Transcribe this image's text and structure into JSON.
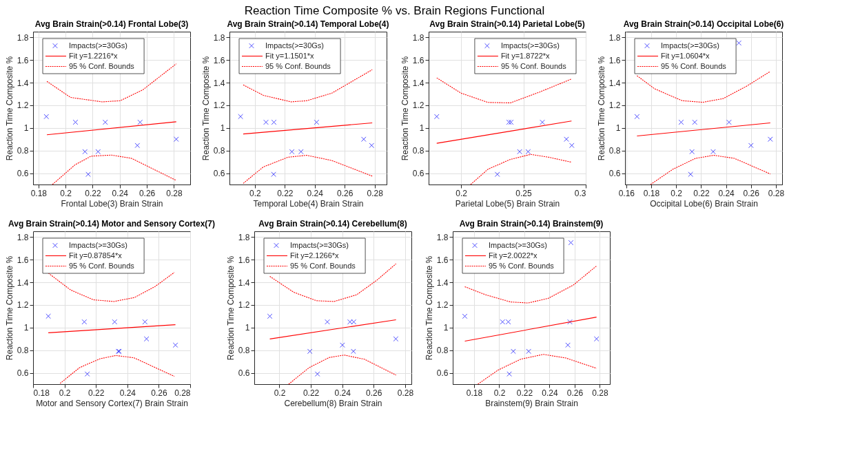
{
  "chart_data": [
    {
      "type": "other",
      "title": "Reaction Time Composite % vs. Brain Regions Functional"
    },
    {
      "type": "scatter",
      "title": "Avg Brain Strain(>0.14) Frontal Lobe(3)",
      "xlabel": "Frontal Lobe(3) Brain Strain",
      "ylabel": "Reaction Time Composite %",
      "xlim": [
        0.176,
        0.292
      ],
      "xticks": [
        0.18,
        0.2,
        0.22,
        0.24,
        0.26,
        0.28
      ],
      "ylim": [
        0.5,
        1.85
      ],
      "yticks": [
        0.6,
        0.8,
        1,
        1.2,
        1.4,
        1.6,
        1.8
      ],
      "grid": true,
      "legend": "top left",
      "series": [
        {
          "name": "Impacts(>=30Gs)",
          "type": "scatter",
          "marker": "cross",
          "color": "#0000ff",
          "x": [
            0.1858,
            0.2073,
            0.2293,
            0.255,
            0.2143,
            0.224,
            0.2167,
            0.253,
            0.2817
          ],
          "values": [
            1.1,
            1.05,
            1.05,
            1.05,
            0.79,
            0.79,
            0.59,
            0.845,
            0.9
          ]
        },
        {
          "name": "Fit y=1.2216*x",
          "type": "line",
          "line_style": "solid",
          "color": "#ff0000",
          "x": [
            0.1862,
            0.2817
          ],
          "values": [
            0.939,
            1.054
          ]
        },
        {
          "name": "95 % Conf. Bounds",
          "type": "line",
          "line_style": "dotted",
          "color": "#ff0000",
          "x": [
            0.1862,
            0.2037,
            0.227,
            0.2403,
            0.257,
            0.2817
          ],
          "values": [
            1.411,
            1.269,
            1.23,
            1.24,
            1.336,
            1.566
          ]
        },
        {
          "type": "line",
          "line_style": "dotted",
          "color": "#ff0000",
          "x": [
            0.1903,
            0.207,
            0.2187,
            0.2337,
            0.2487,
            0.2817
          ],
          "values": [
            0.5,
            0.674,
            0.75,
            0.76,
            0.731,
            0.536
          ]
        }
      ]
    },
    {
      "type": "scatter",
      "title": "Avg Brain Strain(>0.14) Temporal Lobe(4)",
      "xlabel": "Temporal Lobe(4) Brain Strain",
      "ylabel": "Reaction Time Composite %",
      "xlim": [
        0.183,
        0.288
      ],
      "xticks": [
        0.2,
        0.22,
        0.24,
        0.26,
        0.28
      ],
      "ylim": [
        0.5,
        1.85
      ],
      "yticks": [
        0.6,
        0.8,
        1,
        1.2,
        1.4,
        1.6,
        1.8
      ],
      "grid": true,
      "legend": "top left",
      "series": [
        {
          "name": "Impacts(>=30Gs)",
          "type": "scatter",
          "marker": "cross",
          "color": "#0000ff",
          "x": [
            0.1904,
            0.2074,
            0.2127,
            0.2412,
            0.2247,
            0.2308,
            0.2125,
            0.2727,
            0.278
          ],
          "values": [
            1.1,
            1.05,
            1.05,
            1.05,
            0.79,
            0.79,
            0.59,
            0.9,
            0.845
          ]
        },
        {
          "name": "Fit y=1.1501*x",
          "type": "line",
          "line_style": "solid",
          "color": "#ff0000",
          "x": [
            0.1922,
            0.2784
          ],
          "values": [
            0.946,
            1.044
          ]
        },
        {
          "name": "95 % Conf. Bounds",
          "type": "line",
          "line_style": "dotted",
          "color": "#ff0000",
          "x": [
            0.1922,
            0.2056,
            0.2241,
            0.2346,
            0.2514,
            0.2784
          ],
          "values": [
            1.38,
            1.288,
            1.23,
            1.24,
            1.307,
            1.514
          ]
        },
        {
          "type": "line",
          "line_style": "dotted",
          "color": "#ff0000",
          "x": [
            0.1922,
            0.2056,
            0.2221,
            0.2346,
            0.2514,
            0.2784
          ],
          "values": [
            0.51,
            0.655,
            0.741,
            0.758,
            0.712,
            0.574
          ]
        }
      ]
    },
    {
      "type": "scatter",
      "title": "Avg Brain Strain(>0.14) Parietal Lobe(5)",
      "xlabel": "Parietal Lobe(5) Brain Strain",
      "ylabel": "Reaction Time Composite %",
      "xlim": [
        0.174,
        0.3
      ],
      "xticks": [
        0.2,
        0.25,
        0.3
      ],
      "ylim": [
        0.5,
        1.85
      ],
      "yticks": [
        0.6,
        0.8,
        1,
        1.2,
        1.4,
        1.6,
        1.8
      ],
      "grid": true,
      "legend": "top right",
      "series": [
        {
          "name": "Impacts(>=30Gs)",
          "type": "scatter",
          "marker": "cross",
          "color": "#0000ff",
          "x": [
            0.1805,
            0.2384,
            0.2401,
            0.2652,
            0.2291,
            0.247,
            0.2538,
            0.2845,
            0.2888
          ],
          "values": [
            1.1,
            1.05,
            1.05,
            1.05,
            0.59,
            0.79,
            0.79,
            0.9,
            0.845
          ]
        },
        {
          "name": "Fit y=1.8722*x",
          "type": "line",
          "line_style": "solid",
          "color": "#ff0000",
          "x": [
            0.1805,
            0.2886
          ],
          "values": [
            0.864,
            1.061
          ]
        },
        {
          "name": "95 % Conf. Bounds",
          "type": "line",
          "line_style": "dotted",
          "color": "#ff0000",
          "x": [
            0.1805,
            0.2,
            0.2216,
            0.2396,
            0.2631,
            0.2886
          ],
          "values": [
            1.442,
            1.307,
            1.225,
            1.221,
            1.317,
            1.432
          ]
        },
        {
          "type": "line",
          "line_style": "dotted",
          "color": "#ff0000",
          "x": [
            0.2077,
            0.2216,
            0.2396,
            0.2559,
            0.2703,
            0.2886
          ],
          "values": [
            0.5,
            0.635,
            0.722,
            0.766,
            0.741,
            0.697
          ]
        }
      ]
    },
    {
      "type": "scatter",
      "title": "Avg Brain Strain(>0.14) Occipital Lobe(6)",
      "xlabel": "Occipital Lobe(6) Brain Strain",
      "ylabel": "Reaction Time Composite %",
      "xlim": [
        0.159,
        0.285
      ],
      "xticks": [
        0.16,
        0.18,
        0.2,
        0.22,
        0.24,
        0.26,
        0.28
      ],
      "ylim": [
        0.5,
        1.85
      ],
      "yticks": [
        0.6,
        0.8,
        1,
        1.2,
        1.4,
        1.6,
        1.8
      ],
      "grid": true,
      "legend": "top left",
      "series": [
        {
          "name": "Impacts(>=30Gs)",
          "type": "scatter",
          "marker": "cross",
          "color": "#0000ff",
          "x": [
            0.1686,
            0.204,
            0.2149,
            0.2424,
            0.2503,
            0.2127,
            0.2297,
            0.2116,
            0.26,
            0.2755
          ],
          "values": [
            1.1,
            1.05,
            1.05,
            1.05,
            1.75,
            0.79,
            0.79,
            0.59,
            0.845,
            0.9
          ]
        },
        {
          "name": "Fit y=1.0604*x",
          "type": "line",
          "line_style": "solid",
          "color": "#ff0000",
          "x": [
            0.1686,
            0.2755
          ],
          "values": [
            0.929,
            1.044
          ]
        },
        {
          "name": "95 % Conf. Bounds",
          "type": "line",
          "line_style": "dotted",
          "color": "#ff0000",
          "x": [
            0.1686,
            0.1828,
            0.2049,
            0.2213,
            0.2377,
            0.256,
            0.2755
          ],
          "values": [
            1.461,
            1.345,
            1.24,
            1.226,
            1.259,
            1.365,
            1.499
          ]
        },
        {
          "type": "line",
          "line_style": "dotted",
          "color": "#ff0000",
          "x": [
            0.1795,
            0.1974,
            0.2156,
            0.2302,
            0.2467,
            0.2755
          ],
          "values": [
            0.5,
            0.635,
            0.731,
            0.758,
            0.731,
            0.593
          ]
        }
      ]
    },
    {
      "type": "scatter",
      "title": "Avg Brain Strain(>0.14) Motor and Sensory Cortex(7)",
      "xlabel": "Motor and Sensory Cortex(7) Brain Strain",
      "ylabel": "Reaction Time Composite %",
      "xlim": [
        0.18,
        0.28
      ],
      "xticks": [
        0.18,
        0.2,
        0.22,
        0.24,
        0.26,
        0.28
      ],
      "ylim": [
        0.5,
        1.85
      ],
      "yticks": [
        0.6,
        0.8,
        1,
        1.2,
        1.4,
        1.6,
        1.8
      ],
      "grid": true,
      "legend": "top left",
      "series": [
        {
          "name": "Impacts(>=30Gs)",
          "type": "scatter",
          "marker": "cross",
          "color": "#0000ff",
          "x": [
            0.1897,
            0.2126,
            0.2319,
            0.2512,
            0.2343,
            0.2348,
            0.2522,
            0.2706,
            0.2145
          ],
          "values": [
            1.1,
            1.05,
            1.05,
            1.05,
            0.79,
            0.79,
            0.9,
            0.845,
            0.59
          ]
        },
        {
          "name": "Fit y=0.87854*x",
          "type": "line",
          "line_style": "solid",
          "color": "#ff0000",
          "x": [
            0.1897,
            0.2706
          ],
          "values": [
            0.954,
            1.025
          ]
        },
        {
          "name": "95 % Conf. Bounds",
          "type": "line",
          "line_style": "dotted",
          "color": "#ff0000",
          "x": [
            0.1897,
            0.2039,
            0.2184,
            0.2314,
            0.2445,
            0.2575,
            0.2699
          ],
          "values": [
            1.481,
            1.332,
            1.245,
            1.23,
            1.265,
            1.361,
            1.487
          ]
        },
        {
          "type": "line",
          "line_style": "dotted",
          "color": "#ff0000",
          "x": [
            0.1972,
            0.2096,
            0.2225,
            0.2326,
            0.2442,
            0.2699
          ],
          "values": [
            0.507,
            0.646,
            0.724,
            0.753,
            0.733,
            0.569
          ]
        }
      ]
    },
    {
      "type": "scatter",
      "title": "Avg Brain Strain(>0.14) Cerebellum(8)",
      "xlabel": "Cerebellum(8) Brain Strain",
      "ylabel": "Reaction Time Composite %",
      "xlim": [
        0.184,
        0.284
      ],
      "xticks": [
        0.2,
        0.22,
        0.24,
        0.26,
        0.28
      ],
      "ylim": [
        0.5,
        1.85
      ],
      "yticks": [
        0.6,
        0.8,
        1,
        1.2,
        1.4,
        1.6,
        1.8
      ],
      "grid": true,
      "legend": "top left",
      "series": [
        {
          "name": "Impacts(>=30Gs)",
          "type": "scatter",
          "marker": "cross",
          "color": "#0000ff",
          "x": [
            0.1939,
            0.2305,
            0.2449,
            0.2473,
            0.2194,
            0.2242,
            0.2401,
            0.2471,
            0.2741
          ],
          "values": [
            1.1,
            1.05,
            1.05,
            1.05,
            0.79,
            0.59,
            0.845,
            0.79,
            0.9
          ]
        },
        {
          "name": "Fit y=2.1266*x",
          "type": "line",
          "line_style": "solid",
          "color": "#ff0000",
          "x": [
            0.1939,
            0.2742
          ],
          "values": [
            0.899,
            1.069
          ]
        },
        {
          "name": "95 % Conf. Bounds",
          "type": "line",
          "line_style": "dotted",
          "color": "#ff0000",
          "x": [
            0.1939,
            0.2091,
            0.2236,
            0.2348,
            0.2492,
            0.2621,
            0.2742
          ],
          "values": [
            1.452,
            1.312,
            1.237,
            1.23,
            1.29,
            1.419,
            1.563
          ]
        },
        {
          "type": "line",
          "line_style": "dotted",
          "color": "#ff0000",
          "x": [
            0.2059,
            0.2188,
            0.2316,
            0.2412,
            0.2541,
            0.2742
          ],
          "values": [
            0.5,
            0.645,
            0.735,
            0.757,
            0.72,
            0.58
          ]
        }
      ]
    },
    {
      "type": "scatter",
      "title": "Avg Brain Strain(>0.14) Brainstem(9)",
      "xlabel": "Brainstem(9) Brain Strain",
      "ylabel": "Reaction Time Composite %",
      "xlim": [
        0.163,
        0.288
      ],
      "xticks": [
        0.18,
        0.2,
        0.22,
        0.24,
        0.26,
        0.28
      ],
      "ylim": [
        0.5,
        1.85
      ],
      "yticks": [
        0.6,
        0.8,
        1,
        1.2,
        1.4,
        1.6,
        1.8
      ],
      "grid": true,
      "legend": "top left",
      "series": [
        {
          "name": "Impacts(>=30Gs)",
          "type": "scatter",
          "marker": "cross",
          "color": "#0000ff",
          "x": [
            0.1726,
            0.2026,
            0.2072,
            0.2562,
            0.257,
            0.2112,
            0.2234,
            0.208,
            0.2546,
            0.2774
          ],
          "values": [
            1.1,
            1.05,
            1.05,
            1.05,
            1.75,
            0.79,
            0.79,
            0.59,
            0.845,
            0.9
          ]
        },
        {
          "name": "Fit y=2.0022*x",
          "type": "line",
          "line_style": "solid",
          "color": "#ff0000",
          "x": [
            0.1726,
            0.2774
          ],
          "values": [
            0.88,
            1.092
          ]
        },
        {
          "name": "95 % Conf. Bounds",
          "type": "line",
          "line_style": "dotted",
          "color": "#ff0000",
          "x": [
            0.1726,
            0.189,
            0.209,
            0.223,
            0.239,
            0.259,
            0.2774
          ],
          "values": [
            1.361,
            1.29,
            1.226,
            1.217,
            1.258,
            1.376,
            1.544
          ]
        },
        {
          "type": "line",
          "line_style": "dotted",
          "color": "#ff0000",
          "x": [
            0.183,
            0.199,
            0.217,
            0.235,
            0.253,
            0.2774
          ],
          "values": [
            0.5,
            0.624,
            0.72,
            0.763,
            0.731,
            0.64
          ]
        }
      ]
    }
  ]
}
